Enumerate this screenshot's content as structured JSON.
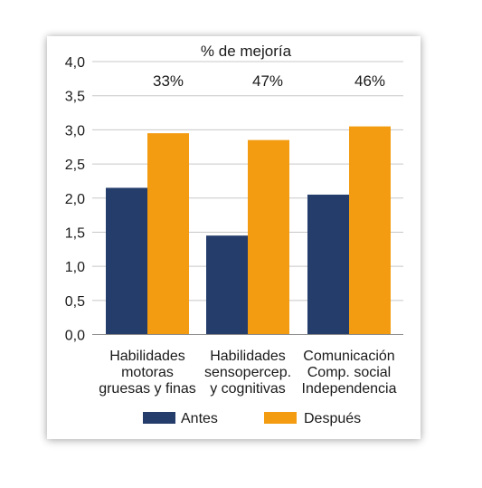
{
  "chart_data": {
    "type": "bar",
    "title": "% de mejoría",
    "categories": [
      [
        "Habilidades",
        "motoras",
        "gruesas y finas"
      ],
      [
        "Habilidades",
        "sensopercep.",
        "y cognitivas"
      ],
      [
        "Comunicación",
        "Comp. social",
        "Independencia"
      ]
    ],
    "series": [
      {
        "name": "Antes",
        "values": [
          2.15,
          1.45,
          2.05
        ],
        "color": "#253d6b"
      },
      {
        "name": "Después",
        "values": [
          2.95,
          2.85,
          3.05
        ],
        "color": "#f39c12"
      }
    ],
    "annotations": [
      "33%",
      "47%",
      "46%"
    ],
    "ylim": [
      0,
      4
    ],
    "yticks": [
      "0,0",
      "0,5",
      "1,0",
      "1,5",
      "2,0",
      "2,5",
      "3,0",
      "3,5",
      "4,0"
    ],
    "grid": true,
    "legend_position": "bottom"
  }
}
